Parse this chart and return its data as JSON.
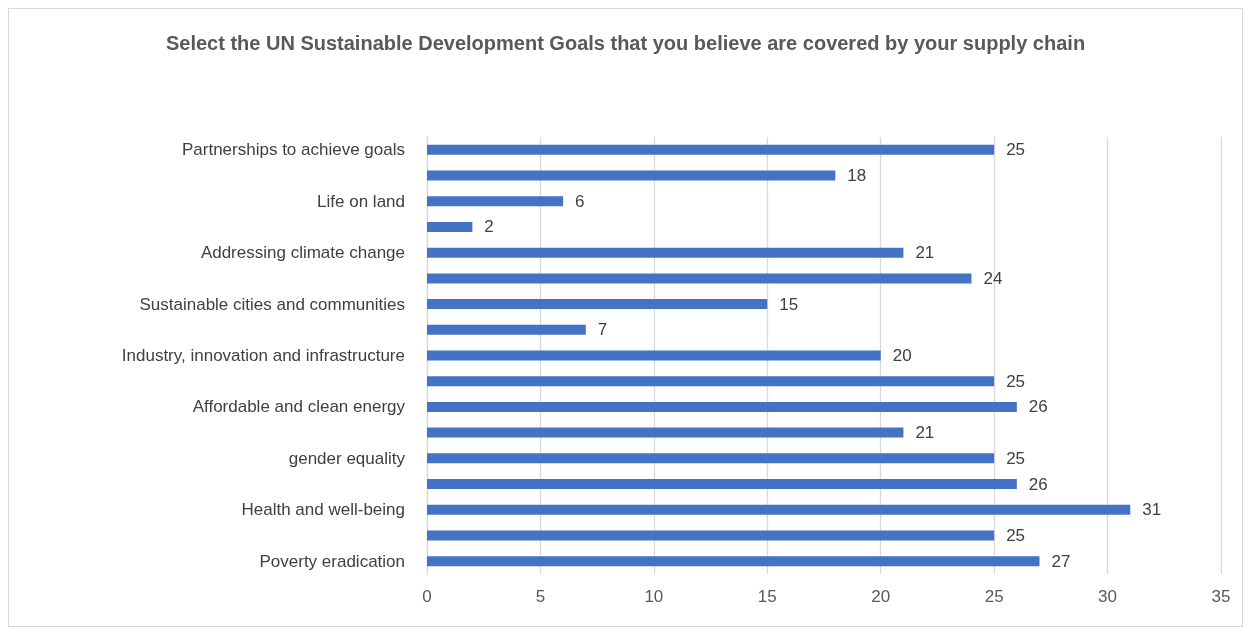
{
  "chart_data": {
    "type": "bar",
    "orientation": "horizontal",
    "title": "Select the UN Sustainable Development Goals that you believe are covered by your supply chain",
    "categories": [
      "Partnerships to achieve goals",
      null,
      "Life on land",
      null,
      "Addressing climate change",
      null,
      "Sustainable cities and communities",
      null,
      "Industry, innovation and infrastructure",
      null,
      "Affordable and clean energy",
      null,
      "gender equality",
      null,
      "Health and well-being",
      null,
      "Poverty eradication"
    ],
    "values": [
      25,
      18,
      6,
      2,
      21,
      24,
      15,
      7,
      20,
      25,
      26,
      21,
      25,
      26,
      31,
      25,
      27
    ],
    "color": "#4472c4",
    "xlim": [
      0,
      35
    ],
    "xticks": [
      0,
      5,
      10,
      15,
      20,
      25,
      30,
      35
    ],
    "grid": "x",
    "data_labels": true
  }
}
